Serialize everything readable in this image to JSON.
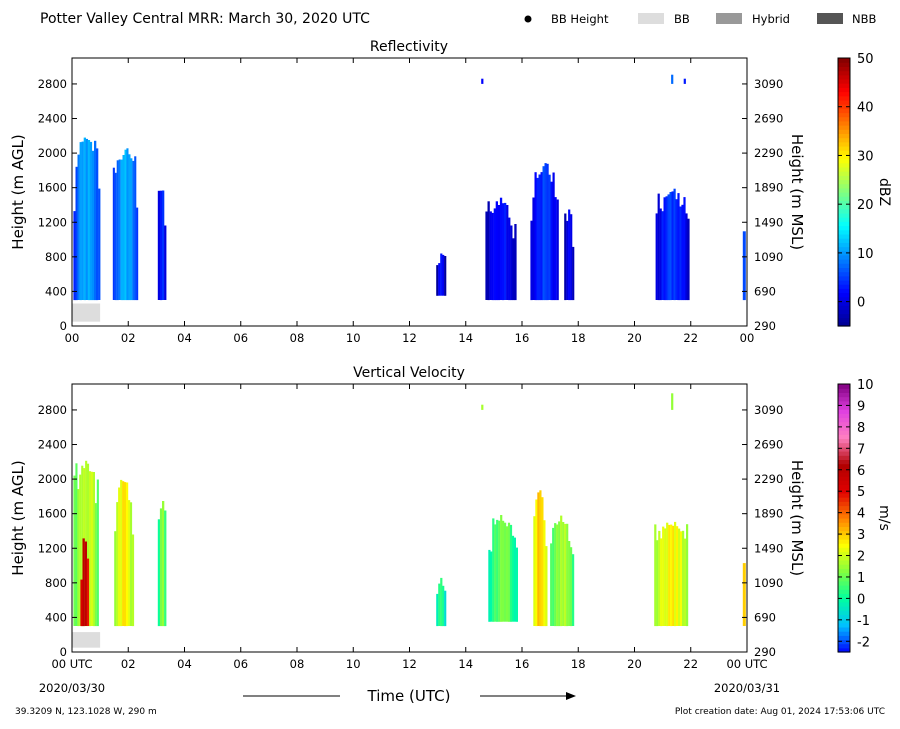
{
  "header": {
    "title": "Potter Valley Central MRR:  March 30, 2020 UTC",
    "legend": [
      {
        "label": "BB Height",
        "kind": "dot",
        "color": "#000000"
      },
      {
        "label": "BB",
        "kind": "swatch",
        "color": "#dddddd"
      },
      {
        "label": "Hybrid",
        "kind": "swatch",
        "color": "#999999"
      },
      {
        "label": "NBB",
        "kind": "swatch",
        "color": "#555555"
      }
    ]
  },
  "footer": {
    "coords": "39.3209 N, 123.1028 W, 290 m",
    "creation": "Plot creation date: Aug 01, 2024 17:53:06 UTC",
    "xlabel": "Time (UTC)",
    "start_date": "2020/03/30",
    "end_date": "2020/03/31"
  },
  "chart_data": [
    {
      "type": "heatmap",
      "title": "Reflectivity",
      "ylabel": "Height (m AGL)",
      "y2label": "Height (m MSL)",
      "xlim": [
        0,
        24
      ],
      "ylim": [
        0,
        3100
      ],
      "x_ticks": [
        "00",
        "02",
        "04",
        "06",
        "08",
        "10",
        "12",
        "14",
        "16",
        "18",
        "20",
        "22",
        "00"
      ],
      "y_ticks": [
        0,
        400,
        800,
        1200,
        1600,
        2000,
        2400,
        2800
      ],
      "y2_ticks": [
        290,
        690,
        1090,
        1490,
        1890,
        2290,
        2690,
        3090
      ],
      "colorbar": {
        "label": "dBZ",
        "range": [
          -5,
          50
        ],
        "ticks": [
          0,
          10,
          20,
          30,
          40,
          50
        ],
        "colormap": [
          "#00008f",
          "#0000ff",
          "#0080ff",
          "#00ffff",
          "#80ff80",
          "#ffff00",
          "#ff8000",
          "#ff0000",
          "#800000"
        ]
      },
      "bright_band": [
        {
          "start": 0.0,
          "end": 1.0,
          "bottom": 50,
          "top": 260
        }
      ],
      "echoes": [
        {
          "start": 0.05,
          "end": 1.0,
          "bottom": 300,
          "top": 2200,
          "value": 8
        },
        {
          "start": 1.45,
          "end": 2.35,
          "bottom": 300,
          "top": 2100,
          "value": 8
        },
        {
          "start": 3.05,
          "end": 3.35,
          "bottom": 300,
          "top": 1700,
          "value": 2
        },
        {
          "start": 12.95,
          "end": 13.3,
          "bottom": 350,
          "top": 850,
          "value": 0
        },
        {
          "start": 14.55,
          "end": 14.6,
          "bottom": 2800,
          "top": 2900,
          "value": 0
        },
        {
          "start": 14.7,
          "end": 15.8,
          "bottom": 300,
          "top": 1500,
          "value": 0
        },
        {
          "start": 16.3,
          "end": 17.3,
          "bottom": 300,
          "top": 1900,
          "value": 2
        },
        {
          "start": 17.5,
          "end": 17.85,
          "bottom": 300,
          "top": 1400,
          "value": 0
        },
        {
          "start": 20.75,
          "end": 21.95,
          "bottom": 300,
          "top": 1600,
          "value": 2
        },
        {
          "start": 21.3,
          "end": 21.35,
          "bottom": 2800,
          "top": 3000,
          "value": 4
        },
        {
          "start": 21.75,
          "end": 21.8,
          "bottom": 2800,
          "top": 2900,
          "value": 0
        },
        {
          "start": 23.85,
          "end": 23.95,
          "bottom": 300,
          "top": 1100,
          "value": 4
        }
      ]
    },
    {
      "type": "heatmap",
      "title": "Vertical Velocity",
      "ylabel": "Height (m AGL)",
      "y2label": "Height (m MSL)",
      "xlim": [
        0,
        24
      ],
      "ylim": [
        0,
        3100
      ],
      "x_ticks": [
        "00 UTC",
        "02",
        "04",
        "06",
        "08",
        "10",
        "12",
        "14",
        "16",
        "18",
        "20",
        "22",
        "00 UTC"
      ],
      "y_ticks": [
        0,
        400,
        800,
        1200,
        1600,
        2000,
        2400,
        2800
      ],
      "y2_ticks": [
        290,
        690,
        1090,
        1490,
        1890,
        2290,
        2690,
        3090
      ],
      "colorbar": {
        "label": "m/s",
        "range": [
          -2.5,
          10
        ],
        "ticks": [
          -2,
          -1,
          0,
          1,
          2,
          3,
          4,
          5,
          6,
          7,
          8,
          9,
          10
        ],
        "colormap": [
          "#0000ff",
          "#00c0ff",
          "#00ffa0",
          "#80ff40",
          "#ffff00",
          "#ff8000",
          "#e00000",
          "#b00000",
          "#ff80c0",
          "#e040e0",
          "#800080"
        ]
      },
      "bright_band": [
        {
          "start": 0.0,
          "end": 1.0,
          "bottom": 50,
          "top": 230
        }
      ],
      "echoes": [
        {
          "start": 0.05,
          "end": 0.95,
          "bottom": 300,
          "top": 2250,
          "value": 1.5
        },
        {
          "start": 0.3,
          "end": 0.6,
          "bottom": 300,
          "top": 1350,
          "value": 5.5
        },
        {
          "start": 1.5,
          "end": 2.2,
          "bottom": 300,
          "top": 2050,
          "value": 2
        },
        {
          "start": 3.05,
          "end": 3.35,
          "bottom": 300,
          "top": 1800,
          "value": 1
        },
        {
          "start": 12.95,
          "end": 13.3,
          "bottom": 300,
          "top": 900,
          "value": 0
        },
        {
          "start": 14.55,
          "end": 14.6,
          "bottom": 2800,
          "top": 2900,
          "value": 1
        },
        {
          "start": 14.8,
          "end": 15.85,
          "bottom": 350,
          "top": 1600,
          "value": 0.5
        },
        {
          "start": 16.4,
          "end": 16.9,
          "bottom": 300,
          "top": 1900,
          "value": 2.5
        },
        {
          "start": 17.0,
          "end": 17.85,
          "bottom": 300,
          "top": 1600,
          "value": 1
        },
        {
          "start": 20.7,
          "end": 21.9,
          "bottom": 300,
          "top": 1550,
          "value": 2
        },
        {
          "start": 21.3,
          "end": 21.35,
          "bottom": 2800,
          "top": 3000,
          "value": 1
        },
        {
          "start": 23.85,
          "end": 23.95,
          "bottom": 300,
          "top": 1100,
          "value": 2.5
        }
      ]
    }
  ]
}
